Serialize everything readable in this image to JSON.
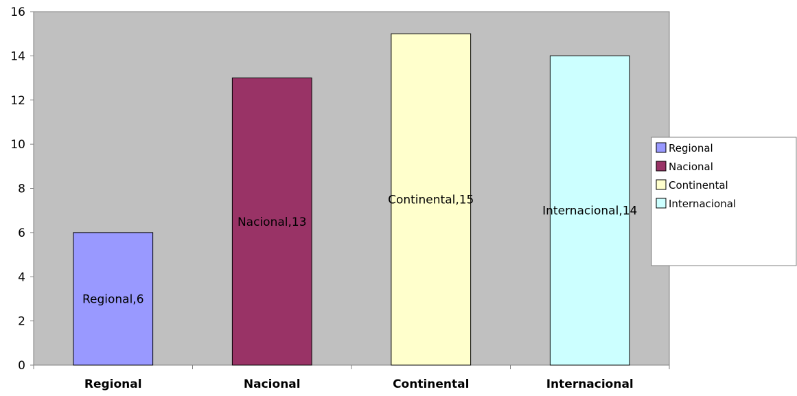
{
  "chart_data": {
    "type": "bar",
    "categories": [
      "Regional",
      "Nacional",
      "Continental",
      "Internacional"
    ],
    "values": [
      6,
      13,
      15,
      14
    ],
    "data_labels": [
      "Regional,6",
      "Nacional,13",
      "Continental,15",
      "Internacional,14"
    ],
    "colors": [
      "#9999ff",
      "#993366",
      "#ffffcc",
      "#ccffff"
    ],
    "plot_background": "#c0c0c0",
    "ylim": [
      0,
      16
    ],
    "yticks": [
      "0",
      "2",
      "4",
      "6",
      "8",
      "10",
      "12",
      "14",
      "16"
    ],
    "grid": false,
    "legend": {
      "placement": "right",
      "entries": [
        "Regional",
        "Nacional",
        "Continental",
        "Internacional"
      ]
    }
  }
}
